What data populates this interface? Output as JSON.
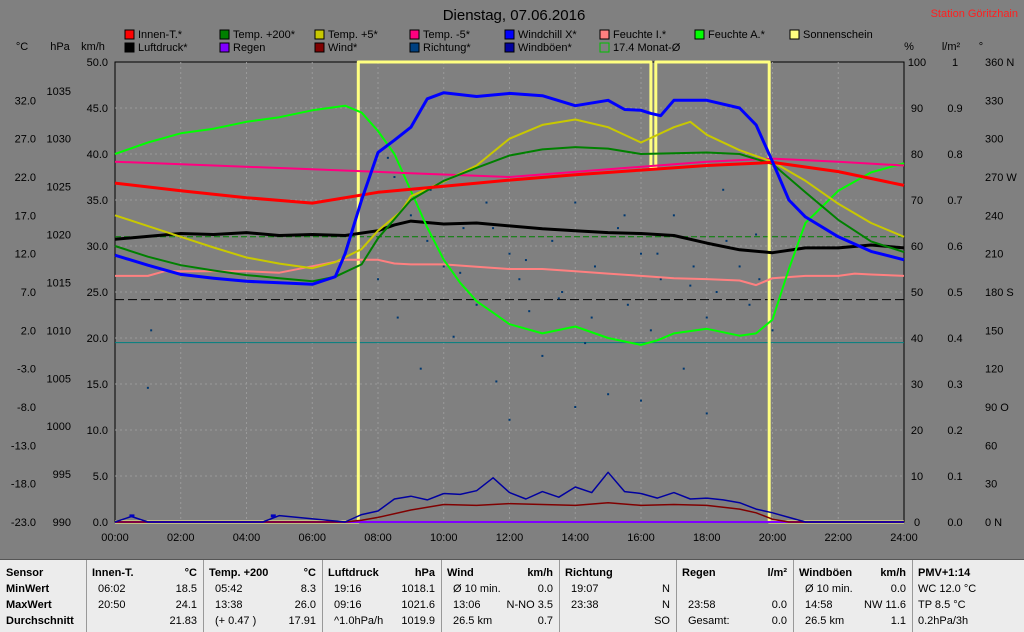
{
  "chart_data": {
    "type": "line",
    "title": "Dienstag, 07.06.2016",
    "station": "Station Göritzhain",
    "x_ticks": [
      "00:00",
      "02:00",
      "04:00",
      "06:00",
      "08:00",
      "10:00",
      "12:00",
      "14:00",
      "16:00",
      "18:00",
      "20:00",
      "22:00",
      "24:00"
    ],
    "axes": {
      "temp_c": {
        "unit": "°C",
        "min": -23,
        "max": 37,
        "ticks": [
          "32.0",
          "27.0",
          "22.0",
          "17.0",
          "12.0",
          "7.0",
          "2.0",
          "-3.0",
          "-8.0",
          "-13.0",
          "-18.0",
          "-23.0"
        ]
      },
      "pressure_hpa": {
        "unit": "hPa",
        "min": 990,
        "max": 1038,
        "ticks": [
          "1035",
          "1030",
          "1025",
          "1020",
          "1015",
          "1010",
          "1005",
          "1000",
          "995",
          "990"
        ]
      },
      "wind_kmh": {
        "unit": "km/h",
        "min": 0,
        "max": 50,
        "ticks": [
          "50.0",
          "45.0",
          "40.0",
          "35.0",
          "30.0",
          "25.0",
          "20.0",
          "15.0",
          "10.0",
          "5.0",
          "0.0"
        ]
      },
      "humidity_pct": {
        "unit": "%",
        "min": 0,
        "max": 100,
        "ticks": [
          "100",
          "90",
          "80",
          "70",
          "60",
          "50",
          "40",
          "30",
          "20",
          "10",
          "0"
        ]
      },
      "rain_lm2": {
        "unit": "l/m²",
        "min": 0,
        "max": 1,
        "ticks": [
          "1",
          "0.9",
          "0.8",
          "0.7",
          "0.6",
          "0.5",
          "0.4",
          "0.3",
          "0.2",
          "0.1",
          "0.0"
        ]
      },
      "direction_deg": {
        "unit": "°",
        "min": 0,
        "max": 360,
        "ticks": [
          "360 N",
          "330",
          "300",
          "270 W",
          "240",
          "210",
          "180 S",
          "150",
          "120",
          "90 O",
          "60",
          "30",
          "0 N"
        ]
      }
    },
    "legend": [
      {
        "name": "Innen-T.*",
        "color": "#ff0000"
      },
      {
        "name": "Temp. +200*",
        "color": "#008000"
      },
      {
        "name": "Temp. +5*",
        "color": "#c8c800"
      },
      {
        "name": "Temp. -5*",
        "color": "#ff0080"
      },
      {
        "name": "Windchill X*",
        "color": "#0000ff"
      },
      {
        "name": "Feuchte I.*",
        "color": "#ff8080"
      },
      {
        "name": "Feuchte A.*",
        "color": "#00ff00"
      },
      {
        "name": "Sonnenschein",
        "color": "#ffff80"
      },
      {
        "name": "Luftdruck*",
        "color": "#000000"
      },
      {
        "name": "Regen",
        "color": "#8000ff"
      },
      {
        "name": "Wind*",
        "color": "#800000"
      },
      {
        "name": "Richtung*",
        "color": "#004080"
      },
      {
        "name": "Windböen*",
        "color": "#0000a0"
      },
      {
        "name": "17.4 Monat-Ø",
        "color": "#00c000"
      }
    ],
    "reference_lines": [
      {
        "axis": "temp_c",
        "y": 14.2,
        "color": "#008000",
        "style": "dashed"
      },
      {
        "axis": "pressure_hpa",
        "y": 1013.2,
        "color": "#000000",
        "style": "dashed"
      },
      {
        "axis": "wind_kmh",
        "y": 19.5,
        "color": "#008080",
        "style": "solid"
      }
    ],
    "series": [
      {
        "name": "Innen-T.*",
        "axis": "temp_c",
        "color": "#ff0000",
        "width": 3,
        "x": [
          0,
          2,
          4,
          6,
          8,
          10,
          12,
          14,
          16,
          18,
          19.5,
          20,
          22,
          24
        ],
        "y": [
          21.2,
          20.2,
          19.3,
          18.6,
          20.0,
          20.8,
          21.6,
          22.3,
          22.9,
          23.5,
          23.8,
          23.9,
          22.7,
          20.9
        ]
      },
      {
        "name": "Temp. +200*",
        "axis": "temp_c",
        "color": "#008000",
        "width": 2,
        "x": [
          0,
          1,
          2,
          3,
          4,
          5,
          6,
          6.7,
          7.5,
          8,
          9,
          10,
          11,
          12,
          13,
          14,
          15,
          16,
          17,
          18,
          19,
          20,
          21,
          22,
          23,
          24
        ],
        "y": [
          13.0,
          11.6,
          10.5,
          9.8,
          9.2,
          8.8,
          8.4,
          9.0,
          10.6,
          14.0,
          19.0,
          21.5,
          23.2,
          24.8,
          25.6,
          25.9,
          25.7,
          25.0,
          25.1,
          25.2,
          25.0,
          23.7,
          20.0,
          16.4,
          13.6,
          12.2
        ]
      },
      {
        "name": "Temp. +5*",
        "axis": "temp_c",
        "color": "#c8c800",
        "width": 2,
        "x": [
          0,
          1,
          2,
          3,
          4,
          5,
          6,
          6.7,
          7.5,
          8,
          8.7,
          9,
          10,
          11,
          12,
          13,
          14,
          15,
          16,
          17,
          17.5,
          18,
          19,
          20,
          21,
          22,
          23,
          24
        ],
        "y": [
          17.0,
          15.6,
          14.2,
          12.8,
          11.5,
          10.7,
          10.1,
          10.9,
          12.6,
          15.0,
          17.5,
          19.5,
          21.4,
          23.5,
          27.0,
          28.8,
          29.5,
          28.5,
          26.5,
          28.5,
          29.2,
          27.5,
          25.5,
          24.0,
          21.5,
          18.5,
          16.0,
          14.2
        ]
      },
      {
        "name": "Temp. -5*",
        "axis": "temp_c",
        "color": "#ff0080",
        "width": 2,
        "x": [
          0,
          3,
          6,
          9,
          12,
          15,
          18,
          20,
          22,
          24
        ],
        "y": [
          24.0,
          23.5,
          23.0,
          22.5,
          22.0,
          23.0,
          24.0,
          24.4,
          24.0,
          23.5
        ]
      },
      {
        "name": "Windchill X*",
        "axis": "temp_c",
        "color": "#0000ff",
        "width": 3,
        "x": [
          0,
          1,
          2,
          3,
          4,
          5,
          6,
          6.7,
          7,
          7.5,
          8,
          8.5,
          9,
          9.5,
          10,
          11,
          12,
          13,
          14,
          15,
          15.5,
          16,
          16.3,
          16.6,
          17,
          18,
          19,
          19.5,
          20,
          20.5,
          21,
          22,
          23,
          24
        ],
        "y": [
          11.8,
          10.5,
          9.3,
          8.8,
          8.4,
          8.2,
          8.0,
          9.0,
          12.0,
          19.0,
          25.2,
          26.8,
          28.5,
          32.2,
          33.0,
          32.5,
          32.9,
          32.6,
          31.3,
          32.0,
          30.8,
          30.7,
          30.3,
          30.0,
          32.0,
          32.0,
          31.0,
          28.8,
          24.0,
          19.0,
          16.8,
          14.2,
          12.3,
          11.2
        ]
      },
      {
        "name": "Luftdruck*",
        "axis": "pressure_hpa",
        "color": "#000000",
        "width": 3,
        "x": [
          0,
          1,
          2,
          3,
          4,
          5,
          6,
          7,
          8,
          8.5,
          9,
          10,
          11,
          12,
          13,
          14,
          15,
          16,
          17,
          18,
          19,
          20,
          21,
          22,
          23,
          24
        ],
        "y": [
          1019.5,
          1019.8,
          1020.1,
          1020.0,
          1020.2,
          1019.9,
          1020.0,
          1019.9,
          1020.4,
          1021.0,
          1021.4,
          1021.1,
          1021.2,
          1020.9,
          1020.6,
          1020.4,
          1020.2,
          1020.1,
          1019.9,
          1019.1,
          1018.4,
          1018.1,
          1018.6,
          1018.6,
          1018.9,
          1018.6
        ]
      },
      {
        "name": "Feuchte I.*",
        "axis": "humidity_pct",
        "color": "#ff8080",
        "width": 2,
        "x": [
          0,
          1,
          1.5,
          4,
          5,
          7,
          8,
          8.5,
          9,
          10,
          11,
          12,
          13,
          14,
          15,
          16,
          17,
          18,
          19,
          19.5,
          20,
          21,
          22,
          22.5,
          23,
          24
        ],
        "y": [
          53.5,
          53.5,
          54.5,
          54.5,
          54.2,
          57.0,
          57.0,
          56.2,
          56.0,
          56.0,
          55.5,
          55.0,
          55.0,
          54.5,
          54.0,
          53.5,
          53.0,
          52.8,
          52.5,
          51.5,
          53.0,
          53.5,
          53.5,
          54.0,
          53.8,
          53.5
        ]
      },
      {
        "name": "Feuchte A.*",
        "axis": "humidity_pct",
        "color": "#00ff00",
        "width": 2,
        "x": [
          0,
          1,
          2,
          3,
          4,
          5,
          6,
          7,
          7.5,
          8,
          8.5,
          9,
          9.5,
          10,
          10.5,
          11,
          11.5,
          12,
          13,
          14,
          15,
          16,
          16.5,
          17,
          18,
          19,
          19.5,
          20,
          20.5,
          21,
          22,
          23,
          24
        ],
        "y": [
          80.0,
          82.5,
          84.5,
          85.5,
          87.0,
          88.0,
          89.5,
          90.5,
          89.0,
          85.0,
          80.0,
          72.0,
          64.0,
          57.0,
          52.0,
          48.0,
          45.5,
          43.0,
          41.0,
          42.5,
          40.0,
          38.5,
          39.5,
          41.0,
          42.0,
          40.5,
          41.0,
          44.0,
          55.0,
          65.0,
          72.0,
          76.0,
          78.0
        ]
      },
      {
        "name": "Windböen*",
        "axis": "wind_kmh",
        "color": "#0000a0",
        "width": 1.5,
        "x": [
          0,
          0.5,
          1,
          4.5,
          5,
          7,
          7.5,
          8,
          8.5,
          9,
          9.5,
          10,
          10.5,
          11,
          11.5,
          12,
          12.5,
          13,
          13.5,
          14,
          14.5,
          15,
          15.5,
          16,
          16.5,
          17,
          17.5,
          18,
          18.5,
          19,
          19.5,
          20,
          20.5,
          21,
          24
        ],
        "y": [
          0,
          0.6,
          0,
          0,
          0.7,
          0,
          0.8,
          1.2,
          2.5,
          2.8,
          2.4,
          3.1,
          3.0,
          3.4,
          4.8,
          3.2,
          2.5,
          3.3,
          2.7,
          3.8,
          3.2,
          5.4,
          3.3,
          3.1,
          2.6,
          3.2,
          2.5,
          2.6,
          2.4,
          2.1,
          1.4,
          1.0,
          0.5,
          0,
          0
        ]
      },
      {
        "name": "Wind*",
        "axis": "wind_kmh",
        "color": "#800000",
        "width": 1.5,
        "x": [
          0,
          7,
          7.5,
          8,
          9,
          10,
          11,
          12,
          13,
          14,
          15,
          16,
          17,
          18,
          19,
          19.5,
          20,
          20.5,
          24
        ],
        "y": [
          0,
          0,
          0.2,
          0.5,
          1.3,
          1.9,
          1.8,
          2.0,
          1.9,
          1.8,
          2.1,
          1.8,
          1.9,
          1.8,
          1.4,
          1.0,
          0.3,
          0,
          0
        ]
      },
      {
        "name": "Regen",
        "axis": "rain_lm2",
        "color": "#8000ff",
        "width": 2,
        "x": [
          0,
          24
        ],
        "y": [
          0,
          0
        ]
      },
      {
        "name": "Sonnenschein",
        "axis": "wind_kmh",
        "color": "#ffff80",
        "width": 3,
        "step": true,
        "x": [
          0,
          7.4,
          7.4,
          16.3,
          16.3,
          16.45,
          16.45,
          16.55,
          16.55,
          19.9,
          19.9,
          24
        ],
        "y": [
          0,
          0,
          50,
          50,
          38.5,
          38.5,
          50,
          50,
          50,
          50,
          0,
          0
        ]
      }
    ],
    "direction_points": {
      "axis": "direction_deg",
      "color": "#003870",
      "x": [
        1.0,
        1.1,
        8.0,
        8.3,
        8.6,
        9.0,
        9.3,
        9.6,
        10.0,
        10.3,
        10.6,
        11.0,
        11.3,
        11.6,
        12.0,
        12.3,
        12.6,
        13.0,
        13.3,
        13.6,
        14.0,
        14.3,
        14.6,
        15.0,
        15.3,
        15.6,
        16.0,
        16.3,
        16.6,
        17.0,
        17.3,
        17.6,
        18.0,
        18.3,
        18.6,
        19.0,
        19.3,
        19.6,
        20.0,
        8.5,
        9.5,
        10.5,
        11.5,
        12.5,
        13.5,
        14.5,
        15.5,
        16.5,
        17.5,
        18.5,
        19.5,
        12.0,
        14.0,
        16.0,
        18.0
      ],
      "y": [
        105,
        150,
        190,
        285,
        160,
        240,
        120,
        260,
        200,
        145,
        230,
        170,
        250,
        110,
        210,
        190,
        165,
        130,
        220,
        180,
        250,
        140,
        200,
        100,
        230,
        170,
        210,
        150,
        190,
        240,
        120,
        200,
        160,
        180,
        220,
        200,
        170,
        190,
        150,
        270,
        220,
        195,
        230,
        205,
        175,
        160,
        240,
        210,
        185,
        260,
        225,
        80,
        90,
        95,
        85
      ]
    },
    "rain_marks": [
      {
        "x": 0.5,
        "y": 0.01
      },
      {
        "x": 4.8,
        "y": 0.01
      }
    ]
  },
  "stats": {
    "sensor": {
      "title": "Sensor",
      "rows": [
        "MinWert",
        "MaxWert",
        "Durchschnitt"
      ]
    },
    "innen": {
      "title": "Innen-T.",
      "unit": "°C",
      "rows": [
        [
          "06:02",
          "18.5"
        ],
        [
          "20:50",
          "24.1"
        ],
        [
          "",
          "21.83"
        ]
      ]
    },
    "temp200": {
      "title": "Temp. +200",
      "unit": "°C",
      "rows": [
        [
          "05:42",
          "8.3"
        ],
        [
          "13:38",
          "26.0"
        ],
        [
          "(+ 0.47 )",
          "17.91"
        ]
      ]
    },
    "luftdruck": {
      "title": "Luftdruck",
      "unit": "hPa",
      "rows": [
        [
          "19:16",
          "1018.1"
        ],
        [
          "09:16",
          "1021.6"
        ],
        [
          "^1.0hPa/h",
          "1019.9"
        ]
      ]
    },
    "wind": {
      "title": "Wind",
      "unit": "km/h",
      "rows": [
        [
          "Ø 10 min.",
          "0.0"
        ],
        [
          "13:06",
          "N-NO 3.5"
        ],
        [
          "26.5 km",
          "0.7"
        ]
      ]
    },
    "richtung": {
      "title": "Richtung",
      "unit": "",
      "rows": [
        [
          "19:07",
          "N"
        ],
        [
          "23:38",
          "N"
        ],
        [
          "",
          "SO"
        ]
      ]
    },
    "regen": {
      "title": "Regen",
      "unit": "l/m²",
      "rows": [
        [
          "",
          ""
        ],
        [
          "23:58",
          "0.0"
        ],
        [
          "Gesamt:",
          "0.0"
        ]
      ]
    },
    "windboeen": {
      "title": "Windböen",
      "unit": "km/h",
      "rows": [
        [
          "Ø 10 min.",
          "0.0"
        ],
        [
          "14:58",
          "NW 11.6"
        ],
        [
          "26.5 km",
          "1.1"
        ]
      ]
    },
    "pmv": {
      "title": "PMV+1:14",
      "rows": [
        "WC 12.0 °C",
        "TP 8.5 °C",
        "0.2hPa/3h"
      ]
    }
  }
}
